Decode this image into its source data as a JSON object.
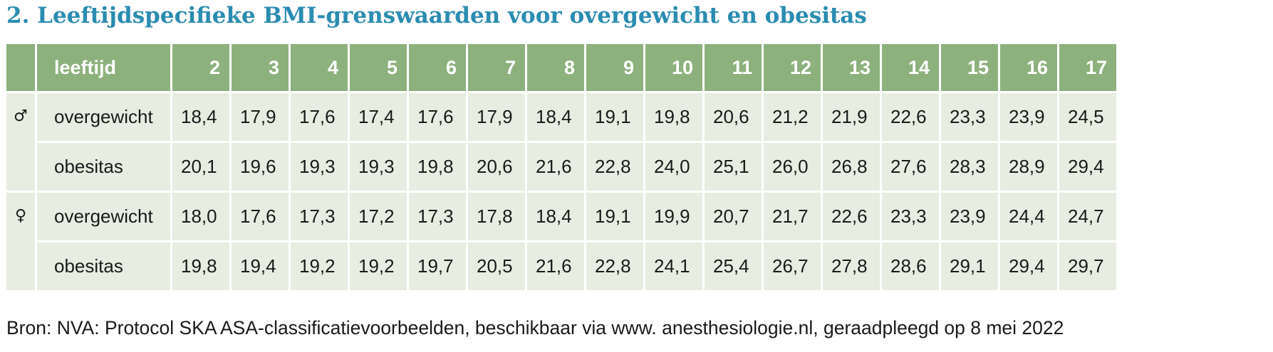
{
  "title": "2. Leeftijdspecifieke BMI-grenswaarden voor overgewicht en obesitas",
  "table": {
    "header_label": "leeftijd",
    "ages": [
      "2",
      "3",
      "4",
      "5",
      "6",
      "7",
      "8",
      "9",
      "10",
      "11",
      "12",
      "13",
      "14",
      "15",
      "16",
      "17"
    ],
    "groups": [
      {
        "symbol": "♂",
        "symbol_icon": "male-symbol-icon",
        "rows": [
          {
            "label": "overgewicht",
            "values": [
              "18,4",
              "17,9",
              "17,6",
              "17,4",
              "17,6",
              "17,9",
              "18,4",
              "19,1",
              "19,8",
              "20,6",
              "21,2",
              "21,9",
              "22,6",
              "23,3",
              "23,9",
              "24,5"
            ]
          },
          {
            "label": "obesitas",
            "values": [
              "20,1",
              "19,6",
              "19,3",
              "19,3",
              "19,8",
              "20,6",
              "21,6",
              "22,8",
              "24,0",
              "25,1",
              "26,0",
              "26,8",
              "27,6",
              "28,3",
              "28,9",
              "29,4"
            ]
          }
        ]
      },
      {
        "symbol": "♀",
        "symbol_icon": "female-symbol-icon",
        "rows": [
          {
            "label": "overgewicht",
            "values": [
              "18,0",
              "17,6",
              "17,3",
              "17,2",
              "17,3",
              "17,8",
              "18,4",
              "19,1",
              "19,9",
              "20,7",
              "21,7",
              "22,6",
              "23,3",
              "23,9",
              "24,4",
              "24,7"
            ]
          },
          {
            "label": "obesitas",
            "values": [
              "19,8",
              "19,4",
              "19,2",
              "19,2",
              "19,7",
              "20,5",
              "21,6",
              "22,8",
              "24,1",
              "25,4",
              "26,7",
              "27,8",
              "28,6",
              "29,1",
              "29,4",
              "29,7"
            ]
          }
        ]
      }
    ]
  },
  "source": "Bron: NVA: Protocol SKA ASA-classificatievoorbeelden, beschikbaar via www. anesthesiologie.nl, geraadpleegd op 8 mei 2022",
  "colors": {
    "title": "#2a8cb0",
    "header_bg": "#8db17d",
    "cell_bg": "#e7ede0"
  }
}
